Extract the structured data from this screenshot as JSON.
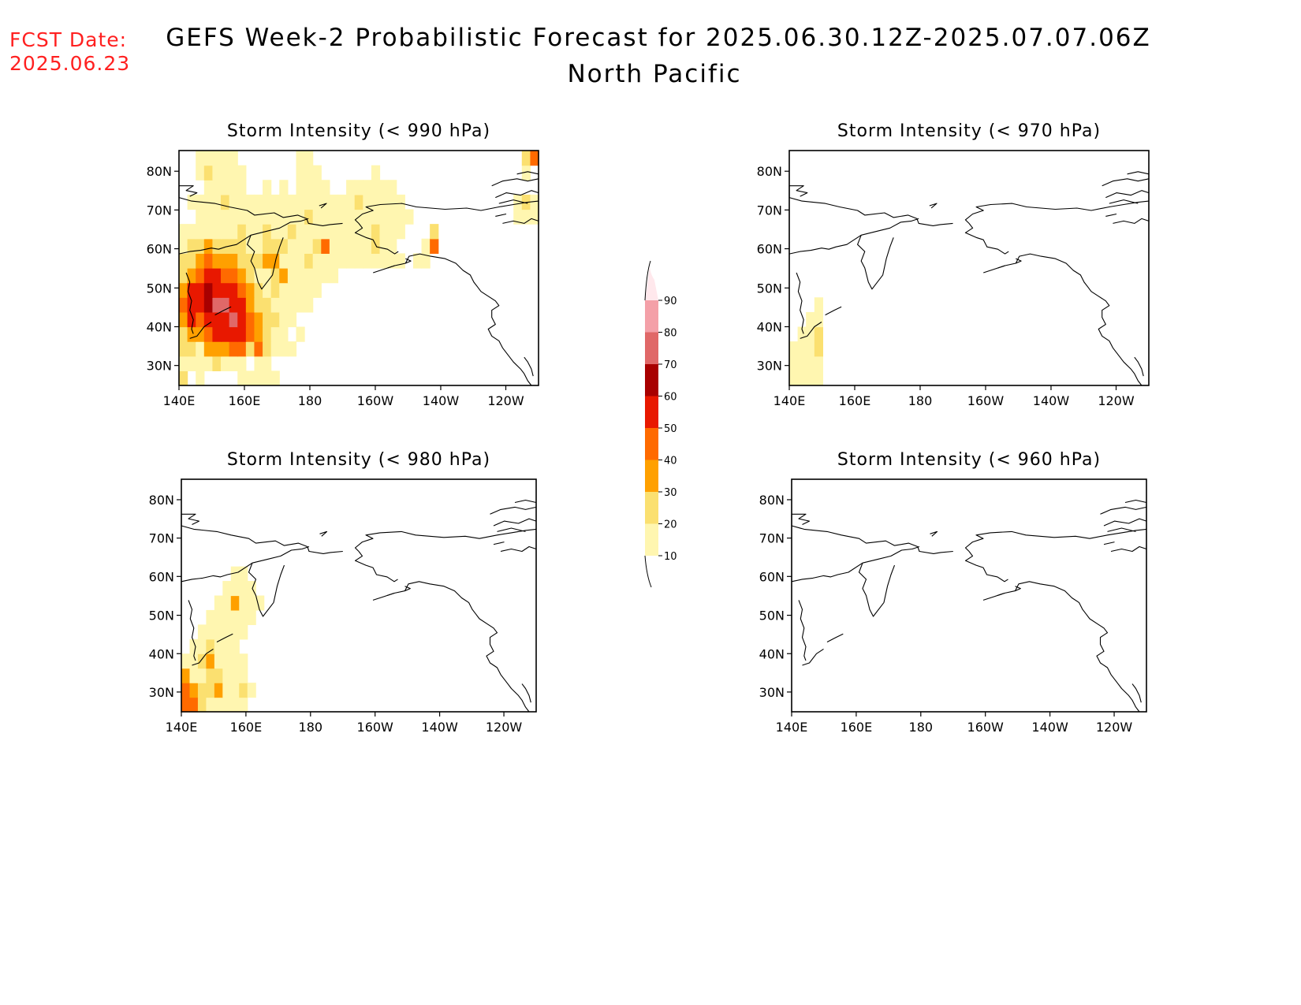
{
  "forecast_date": {
    "label": "FCST Date:",
    "value": "2025.06.23"
  },
  "header": {
    "title_line1": "GEFS Week-2 Probabilistic Forecast for 2025.06.30.12Z-2025.07.07.06Z",
    "title_line2": "North Pacific"
  },
  "axes": {
    "lon_labels": [
      "140E",
      "160E",
      "180",
      "160W",
      "140W",
      "120W"
    ],
    "lat_labels": [
      "80N",
      "70N",
      "60N",
      "50N",
      "40N",
      "30N"
    ]
  },
  "colorbar": {
    "levels": [
      "10",
      "20",
      "30",
      "40",
      "50",
      "60",
      "70",
      "80",
      "90"
    ],
    "colors": [
      "#fff6b0",
      "#fbe070",
      "#ffa000",
      "#ff6a00",
      "#e81800",
      "#a80000",
      "#e06868",
      "#f4a0a8",
      "#ffe8ec"
    ]
  },
  "colors": {
    "coast": "#000000",
    "fcst_text": "#ff2020"
  },
  "panels": [
    {
      "id": "p990",
      "title": "Storm Intensity (< 990 hPa)",
      "cells": [
        [
          2,
          0,
          1,
          0,
          0,
          0,
          0,
          1,
          1,
          1,
          1,
          1,
          0,
          0,
          0,
          0,
          0,
          0,
          0,
          0,
          0,
          0,
          0,
          0,
          0,
          0,
          0,
          0,
          0,
          0,
          0,
          0,
          0,
          0,
          0,
          0,
          0,
          0,
          0,
          0,
          0,
          0,
          0
        ],
        [
          1,
          1,
          1,
          1,
          2,
          1,
          1,
          1,
          0,
          1,
          1,
          0,
          0,
          0,
          0,
          0,
          0,
          0,
          0,
          0,
          0,
          0,
          0,
          0,
          0,
          0,
          0,
          0,
          0,
          0,
          0,
          0,
          0,
          0,
          0,
          0,
          0,
          0,
          0,
          0,
          0,
          0,
          0
        ],
        [
          2,
          2,
          1,
          3,
          3,
          3,
          4,
          4,
          2,
          4,
          2,
          1,
          1,
          1,
          0,
          0,
          0,
          0,
          0,
          0,
          0,
          0,
          0,
          0,
          0,
          0,
          0,
          0,
          0,
          0,
          0,
          0,
          0,
          0,
          0,
          0,
          0,
          0,
          0,
          0,
          0,
          0,
          0
        ],
        [
          2,
          3,
          3,
          4,
          5,
          5,
          5,
          5,
          4,
          3,
          2,
          1,
          1,
          0,
          1,
          0,
          0,
          0,
          0,
          0,
          0,
          0,
          0,
          0,
          0,
          0,
          0,
          0,
          0,
          0,
          0,
          0,
          0,
          0,
          0,
          0,
          0,
          0,
          0,
          0,
          0,
          0,
          0
        ],
        [
          3,
          5,
          4,
          5,
          5,
          5,
          7,
          5,
          4,
          3,
          2,
          2,
          1,
          1,
          0,
          0,
          0,
          0,
          0,
          0,
          0,
          0,
          0,
          0,
          0,
          0,
          0,
          0,
          0,
          0,
          0,
          0,
          0,
          0,
          0,
          0,
          0,
          0,
          0,
          0,
          0,
          0,
          0
        ],
        [
          4,
          5,
          5,
          6,
          7,
          7,
          5,
          5,
          3,
          2,
          2,
          1,
          1,
          1,
          1,
          1,
          0,
          0,
          0,
          0,
          0,
          0,
          0,
          0,
          0,
          0,
          0,
          0,
          0,
          0,
          0,
          0,
          0,
          0,
          0,
          0,
          0,
          0,
          0,
          0,
          0,
          0,
          0
        ],
        [
          3,
          5,
          5,
          6,
          5,
          5,
          5,
          4,
          3,
          2,
          1,
          2,
          1,
          1,
          1,
          1,
          1,
          0,
          0,
          0,
          0,
          0,
          0,
          0,
          0,
          0,
          0,
          0,
          0,
          0,
          0,
          0,
          0,
          0,
          0,
          0,
          0,
          0,
          0,
          0,
          0,
          0,
          0
        ],
        [
          2,
          3,
          4,
          5,
          5,
          4,
          4,
          3,
          2,
          1,
          1,
          2,
          3,
          1,
          1,
          1,
          1,
          1,
          1,
          0,
          0,
          0,
          0,
          0,
          0,
          0,
          0,
          0,
          0,
          0,
          0,
          0,
          0,
          0,
          0,
          0,
          0,
          0,
          0,
          0,
          0,
          0,
          0
        ],
        [
          2,
          2,
          3,
          4,
          3,
          3,
          3,
          2,
          2,
          2,
          3,
          3,
          1,
          1,
          1,
          2,
          1,
          1,
          1,
          1,
          1,
          1,
          1,
          1,
          1,
          1,
          1,
          0,
          1,
          1,
          0,
          0,
          0,
          0,
          0,
          0,
          0,
          0,
          0,
          0,
          0,
          0,
          0
        ],
        [
          1,
          2,
          2,
          3,
          2,
          2,
          2,
          2,
          1,
          1,
          2,
          2,
          2,
          1,
          1,
          1,
          2,
          4,
          1,
          1,
          1,
          1,
          1,
          2,
          1,
          1,
          0,
          0,
          0,
          1,
          4,
          0,
          0,
          0,
          0,
          0,
          0,
          0,
          0,
          0,
          0,
          0,
          0
        ],
        [
          1,
          1,
          1,
          1,
          1,
          1,
          1,
          2,
          1,
          1,
          2,
          1,
          1,
          2,
          1,
          1,
          1,
          1,
          1,
          1,
          1,
          1,
          1,
          2,
          1,
          1,
          1,
          0,
          0,
          0,
          2,
          0,
          0,
          0,
          0,
          0,
          0,
          0,
          0,
          0,
          0,
          0,
          0
        ],
        [
          0,
          0,
          1,
          1,
          1,
          1,
          1,
          1,
          1,
          1,
          1,
          1,
          1,
          1,
          1,
          2,
          1,
          1,
          1,
          1,
          1,
          1,
          1,
          1,
          1,
          1,
          1,
          1,
          0,
          0,
          0,
          0,
          0,
          0,
          0,
          0,
          0,
          0,
          0,
          0,
          1,
          1,
          1
        ],
        [
          0,
          1,
          1,
          1,
          1,
          2,
          1,
          1,
          1,
          1,
          1,
          1,
          1,
          1,
          1,
          1,
          1,
          1,
          1,
          1,
          1,
          2,
          1,
          1,
          1,
          1,
          1,
          0,
          0,
          0,
          0,
          0,
          0,
          0,
          0,
          0,
          0,
          0,
          0,
          0,
          1,
          2,
          1
        ],
        [
          0,
          0,
          0,
          1,
          1,
          1,
          1,
          1,
          0,
          0,
          1,
          0,
          1,
          0,
          1,
          1,
          1,
          1,
          0,
          0,
          1,
          1,
          1,
          1,
          1,
          1,
          0,
          0,
          0,
          0,
          0,
          0,
          0,
          0,
          0,
          0,
          0,
          0,
          0,
          0,
          0,
          0,
          0
        ],
        [
          0,
          0,
          1,
          2,
          1,
          1,
          1,
          1,
          0,
          0,
          0,
          0,
          0,
          0,
          1,
          1,
          1,
          0,
          0,
          0,
          0,
          0,
          0,
          1,
          0,
          0,
          0,
          0,
          0,
          0,
          0,
          0,
          0,
          0,
          0,
          0,
          0,
          0,
          0,
          0,
          0,
          1,
          0
        ],
        [
          0,
          0,
          1,
          1,
          1,
          1,
          1,
          0,
          0,
          0,
          0,
          0,
          0,
          0,
          1,
          1,
          0,
          0,
          0,
          0,
          0,
          0,
          0,
          0,
          0,
          0,
          0,
          0,
          0,
          0,
          0,
          0,
          0,
          0,
          0,
          0,
          0,
          0,
          0,
          0,
          0,
          2,
          4
        ]
      ]
    },
    {
      "id": "p970",
      "title": "Storm Intensity (< 970 hPa)",
      "cells": [
        [
          1,
          1,
          1,
          1,
          0,
          0,
          0,
          0
        ],
        [
          1,
          1,
          1,
          1,
          0,
          0,
          0,
          0
        ],
        [
          1,
          1,
          1,
          2,
          0,
          0,
          0,
          0
        ],
        [
          0,
          1,
          1,
          2,
          0,
          0,
          0,
          0
        ],
        [
          0,
          0,
          1,
          1,
          0,
          0,
          0,
          0
        ],
        [
          0,
          0,
          0,
          1,
          0,
          0,
          0,
          0
        ]
      ]
    },
    {
      "id": "p980",
      "title": "Storm Intensity (< 980 hPa)",
      "cells": [
        [
          4,
          4,
          2,
          1,
          1,
          1,
          1,
          1,
          0,
          0,
          0,
          0,
          0,
          0,
          0,
          0,
          0
        ],
        [
          4,
          3,
          2,
          2,
          3,
          1,
          1,
          2,
          1,
          0,
          0,
          0,
          0,
          0,
          0,
          0,
          0
        ],
        [
          3,
          1,
          1,
          2,
          2,
          1,
          1,
          1,
          0,
          0,
          0,
          0,
          0,
          0,
          0,
          0,
          0
        ],
        [
          1,
          1,
          2,
          3,
          1,
          1,
          1,
          1,
          0,
          0,
          0,
          0,
          0,
          0,
          0,
          0,
          0
        ],
        [
          0,
          1,
          1,
          2,
          1,
          1,
          1,
          0,
          0,
          0,
          0,
          0,
          0,
          0,
          0,
          0,
          0
        ],
        [
          0,
          0,
          1,
          1,
          1,
          1,
          1,
          1,
          0,
          0,
          0,
          0,
          0,
          0,
          0,
          0,
          0
        ],
        [
          0,
          0,
          0,
          1,
          1,
          1,
          1,
          1,
          1,
          0,
          0,
          0,
          0,
          0,
          0,
          0,
          0
        ],
        [
          0,
          0,
          0,
          0,
          1,
          1,
          3,
          1,
          1,
          1,
          0,
          0,
          0,
          0,
          0,
          0,
          0
        ],
        [
          0,
          0,
          0,
          0,
          0,
          1,
          1,
          1,
          1,
          0,
          0,
          0,
          0,
          0,
          0,
          0,
          0
        ],
        [
          0,
          0,
          0,
          0,
          0,
          0,
          1,
          1,
          0,
          0,
          0,
          0,
          0,
          0,
          0,
          0,
          0
        ]
      ]
    },
    {
      "id": "p960",
      "title": "Storm Intensity (< 960 hPa)",
      "cells": []
    }
  ]
}
